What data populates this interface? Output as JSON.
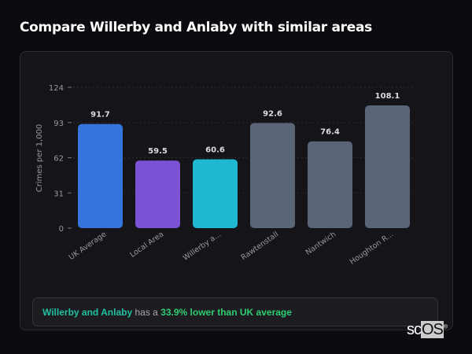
{
  "page_title": "Compare Willerby and Anlaby with similar areas",
  "chart_data": {
    "type": "bar",
    "title": "",
    "ylabel": "Crimes per 1,000",
    "ylim": [
      0,
      124
    ],
    "yticks": [
      0,
      31,
      62,
      93,
      124
    ],
    "grid": true,
    "categories": [
      "UK Average",
      "Local Area",
      "Willerby a...",
      "Rawtenstall",
      "Nantwich",
      "Houghton R..."
    ],
    "values": [
      91.7,
      59.5,
      60.6,
      92.6,
      76.4,
      108.1
    ],
    "value_labels": [
      "91.7",
      "59.5",
      "60.6",
      "92.6",
      "76.4",
      "108.1"
    ],
    "colors": [
      "#3574dc",
      "#7b52d4",
      "#1fb8d0",
      "#5a6578",
      "#5a6578",
      "#5a6578"
    ]
  },
  "summary": {
    "area": "Willerby and Anlaby",
    "middle": "has a",
    "result": "33.9% lower than UK average"
  },
  "watermark": {
    "text": "scOS"
  }
}
